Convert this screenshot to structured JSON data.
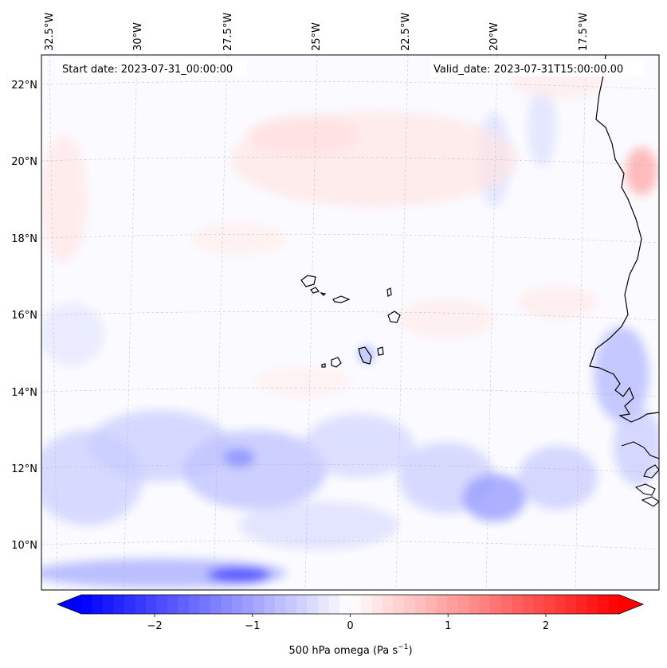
{
  "map": {
    "start_label": "Start date: 2023-07-31_00:00:00",
    "valid_label": "Valid_date: 2023-07-31T15:00:00.00",
    "lon_ticks": [
      "32.5°W",
      "30°W",
      "27.5°W",
      "25°W",
      "22.5°W",
      "20°W",
      "17.5°W"
    ],
    "lat_ticks": [
      "22°N",
      "20°N",
      "18°N",
      "16°N",
      "14°N",
      "12°N",
      "10°N"
    ],
    "field_name": "500 hPa omega",
    "lon_range_deg": [
      -33.0,
      -15.8
    ],
    "lat_range_deg": [
      8.8,
      22.8
    ],
    "gridlines": true,
    "coastlines": true
  },
  "colorbar": {
    "label_text": "500 hPa omega (Pa s",
    "label_exponent": "−1",
    "label_close": ")",
    "tick_labels": [
      "−2",
      "−1",
      "0",
      "1",
      "2"
    ],
    "tick_values": [
      -2,
      -1,
      0,
      1,
      2
    ],
    "range": [
      -2.75,
      2.75
    ],
    "extend": "both",
    "cmap": "bwr",
    "colors": {
      "low": "#0000ff",
      "mid": "#ffffff",
      "high": "#ff0000"
    }
  }
}
